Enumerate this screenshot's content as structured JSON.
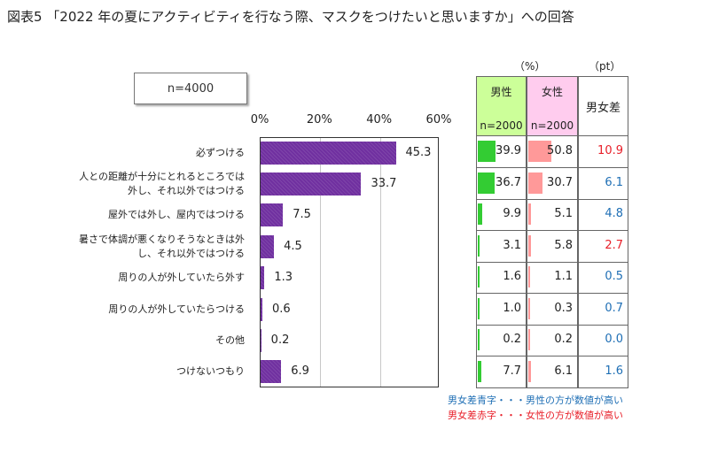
{
  "title": "図表5 「2022 年の夏にアクティビティを行なう際、マスクをつけたいと思いますか」への回答",
  "sample_label": "n=4000",
  "chart_data": {
    "type": "bar",
    "orientation": "horizontal",
    "categories": [
      [
        "必ずつける"
      ],
      [
        "人との距離が十分にとれるところでは",
        "外し、それ以外ではつける"
      ],
      [
        "屋外では外し、屋内ではつける"
      ],
      [
        "暑さで体調が悪くなりそうなときは外",
        "し、それ以外ではつける"
      ],
      [
        "周りの人が外していたら外す"
      ],
      [
        "周りの人が外していたらつける"
      ],
      [
        "その他"
      ],
      [
        "つけないつもり"
      ]
    ],
    "values": [
      45.3,
      33.7,
      7.5,
      4.5,
      1.3,
      0.6,
      0.2,
      6.9
    ],
    "value_labels": [
      "45.3",
      "33.7",
      "7.5",
      "4.5",
      "1.3",
      "0.6",
      "0.2",
      "6.9"
    ],
    "xlim": [
      0,
      60
    ],
    "xticks": [
      0,
      20,
      40,
      60
    ],
    "xtick_labels": [
      "0%",
      "20%",
      "40%",
      "60%"
    ],
    "bar_color": "#7030a0"
  },
  "table": {
    "unit_pct": "（%）",
    "unit_pt": "（pt）",
    "male_header": "男性",
    "male_n": "n=2000",
    "female_header": "女性",
    "female_n": "n=2000",
    "diff_header": "男女差",
    "male_header_bg": "#ccff99",
    "female_header_bg": "#ffccee",
    "male_bar_color": "#33cc33",
    "female_bar_color": "#ff9999",
    "blue": "#1f6fb5",
    "red": "#e8202a",
    "male": [
      39.9,
      36.7,
      9.9,
      3.1,
      1.6,
      1.0,
      0.2,
      7.7
    ],
    "male_labels": [
      "39.9",
      "36.7",
      "9.9",
      "3.1",
      "1.6",
      "1.0",
      "0.2",
      "7.7"
    ],
    "female": [
      50.8,
      30.7,
      5.1,
      5.8,
      1.1,
      0.3,
      0.2,
      6.1
    ],
    "female_labels": [
      "50.8",
      "30.7",
      "5.1",
      "5.8",
      "1.1",
      "0.3",
      "0.2",
      "6.1"
    ],
    "diff_labels": [
      "10.9",
      "6.1",
      "4.8",
      "2.7",
      "0.5",
      "0.7",
      "0.0",
      "1.6"
    ],
    "diff_colors": [
      "red",
      "blue",
      "blue",
      "red",
      "blue",
      "blue",
      "blue",
      "blue"
    ]
  },
  "notes": {
    "blue_note": "男女差青字・・・男性の方が数値が高い",
    "red_note": "男女差赤字・・・女性の方が数値が高い"
  }
}
